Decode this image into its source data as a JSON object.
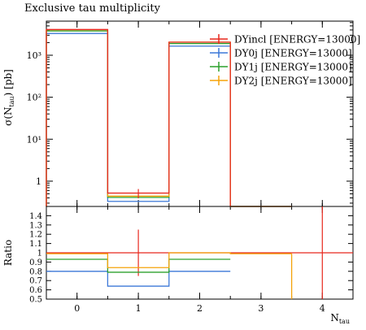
{
  "chart_data": [
    {
      "type": "histogram-step",
      "title": "Exclusive tau multiplicity",
      "ylabel": "σ(N_tau) [pb]",
      "ylabel_main": "σ(N",
      "ylabel_sub": "tau",
      "ylabel_tail": ") [pb]",
      "xlabel": "N_tau",
      "xlabel_main": "N",
      "xlabel_sub": "tau",
      "yscale": "log",
      "xlim": [
        -0.5,
        4.5
      ],
      "ylim": [
        0.25,
        6500
      ],
      "x_ticks": [
        0,
        1,
        2,
        3,
        4
      ],
      "y_ticks": [
        {
          "v": 1,
          "label": "1"
        },
        {
          "v": 10,
          "label": "10¹"
        },
        {
          "v": 100,
          "label": "10²"
        },
        {
          "v": 1000,
          "label": "10³"
        }
      ],
      "bin_edges": [
        -0.5,
        0.5,
        1.5,
        2.5,
        3.5,
        4.5
      ],
      "legend_position": "top-right",
      "series": [
        {
          "name": "DYincl [ENERGY=13000]",
          "color": "#e8281e",
          "values": [
            4100,
            0.52,
            2050,
            0,
            0
          ],
          "err": [
            null,
            0.13,
            null,
            null,
            null
          ]
        },
        {
          "name": "DY0j [ENERGY=13000]",
          "color": "#3c78d8",
          "values": [
            3300,
            0.33,
            1650,
            0,
            0
          ],
          "err": [
            null,
            null,
            null,
            null,
            null
          ]
        },
        {
          "name": "DY1j [ENERGY=13000]",
          "color": "#2ca02c",
          "values": [
            3800,
            0.41,
            1900,
            0,
            0
          ],
          "err": [
            null,
            null,
            null,
            null,
            null
          ]
        },
        {
          "name": "DY2j [ENERGY=13000]",
          "color": "#f5a30a",
          "values": [
            4050,
            0.44,
            2050,
            0,
            0
          ],
          "err": [
            null,
            null,
            null,
            null,
            null
          ]
        }
      ]
    },
    {
      "type": "ratio-step",
      "ylabel": "Ratio",
      "ylim": [
        0.5,
        1.5
      ],
      "y_ticks": [
        {
          "v": 0.5,
          "label": "0.5"
        },
        {
          "v": 0.6,
          "label": "0.6"
        },
        {
          "v": 0.7,
          "label": "0.7"
        },
        {
          "v": 0.8,
          "label": "0.8"
        },
        {
          "v": 0.9,
          "label": "0.9"
        },
        {
          "v": 1.0,
          "label": "1"
        },
        {
          "v": 1.1,
          "label": "1.1"
        },
        {
          "v": 1.2,
          "label": "1.2"
        },
        {
          "v": 1.3,
          "label": "1.3"
        },
        {
          "v": 1.4,
          "label": "1.4"
        }
      ],
      "series": [
        {
          "name": "DYincl [ENERGY=13000]",
          "color": "#e8281e",
          "values": [
            1.0,
            1.0,
            1.0,
            1.0,
            1.0
          ],
          "err": [
            null,
            0.25,
            null,
            null,
            0.5
          ]
        },
        {
          "name": "DY0j [ENERGY=13000]",
          "color": "#3c78d8",
          "values": [
            0.8,
            0.64,
            0.8,
            null,
            null
          ]
        },
        {
          "name": "DY1j [ENERGY=13000]",
          "color": "#2ca02c",
          "values": [
            0.93,
            0.79,
            0.93,
            null,
            null
          ]
        },
        {
          "name": "DY2j [ENERGY=13000]",
          "color": "#f5a30a",
          "values": [
            0.99,
            0.84,
            1.0,
            0.99,
            null
          ]
        }
      ]
    }
  ]
}
